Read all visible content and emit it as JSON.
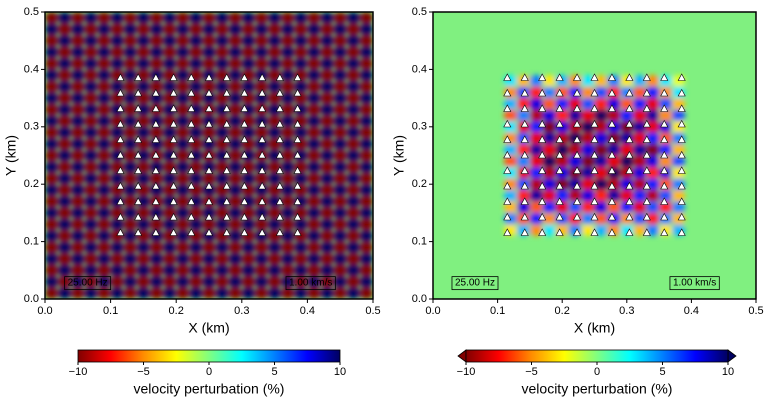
{
  "chart_data": [
    {
      "type": "heatmap",
      "xlabel": "X (km)",
      "ylabel": "Y (km)",
      "xlim": [
        0,
        0.5
      ],
      "ylim": [
        0,
        0.5
      ],
      "xticks": [
        {
          "value": 0,
          "label": "0.0"
        },
        {
          "value": 0.1,
          "label": "0.1"
        },
        {
          "value": 0.2,
          "label": "0.2"
        },
        {
          "value": 0.3,
          "label": "0.3"
        },
        {
          "value": 0.4,
          "label": "0.4"
        },
        {
          "value": 0.5,
          "label": "0.5"
        }
      ],
      "yticks": [
        {
          "value": 0,
          "label": "0.0"
        },
        {
          "value": 0.1,
          "label": "0.1"
        },
        {
          "value": 0.2,
          "label": "0.2"
        },
        {
          "value": 0.3,
          "label": "0.3"
        },
        {
          "value": 0.4,
          "label": "0.4"
        },
        {
          "value": 0.5,
          "label": "0.5"
        }
      ],
      "x": [
        0.01,
        0.03,
        0.05,
        0.07,
        0.09,
        0.11,
        0.13,
        0.15,
        0.17,
        0.19,
        0.21,
        0.23,
        0.25,
        0.27,
        0.29,
        0.31,
        0.33,
        0.35,
        0.37,
        0.39,
        0.41,
        0.43,
        0.45,
        0.47,
        0.49
      ],
      "y": [
        0.01,
        0.03,
        0.05,
        0.07,
        0.09,
        0.11,
        0.13,
        0.15,
        0.17,
        0.19,
        0.21,
        0.23,
        0.25,
        0.27,
        0.29,
        0.31,
        0.33,
        0.35,
        0.37,
        0.39,
        0.41,
        0.43,
        0.45,
        0.47,
        0.49
      ],
      "z": [
        [
          -10,
          10,
          -10,
          10,
          -10,
          10,
          -10,
          10,
          -10,
          10,
          -10,
          10,
          -10,
          10,
          -10,
          10,
          -10,
          10,
          -10,
          10,
          -10,
          10,
          -10,
          10,
          -10
        ],
        [
          10,
          -10,
          10,
          -10,
          10,
          -10,
          10,
          -10,
          10,
          -10,
          10,
          -10,
          10,
          -10,
          10,
          -10,
          10,
          -10,
          10,
          -10,
          10,
          -10,
          10,
          -10,
          10
        ],
        [
          -10,
          10,
          -10,
          10,
          -10,
          10,
          -10,
          10,
          -10,
          10,
          -10,
          10,
          -10,
          10,
          -10,
          10,
          -10,
          10,
          -10,
          10,
          -10,
          10,
          -10,
          10,
          -10
        ],
        [
          10,
          -10,
          10,
          -10,
          10,
          -10,
          10,
          -10,
          10,
          -10,
          10,
          -10,
          10,
          -10,
          10,
          -10,
          10,
          -10,
          10,
          -10,
          10,
          -10,
          10,
          -10,
          10
        ],
        [
          -10,
          10,
          -10,
          10,
          -10,
          10,
          -10,
          10,
          -10,
          10,
          -10,
          10,
          -10,
          10,
          -10,
          10,
          -10,
          10,
          -10,
          10,
          -10,
          10,
          -10,
          10,
          -10
        ],
        [
          10,
          -10,
          10,
          -10,
          10,
          -10,
          10,
          -10,
          10,
          -10,
          10,
          -10,
          10,
          -10,
          10,
          -10,
          10,
          -10,
          10,
          -10,
          10,
          -10,
          10,
          -10,
          10
        ],
        [
          -10,
          10,
          -10,
          10,
          -10,
          10,
          -10,
          10,
          -10,
          10,
          -10,
          10,
          -10,
          10,
          -10,
          10,
          -10,
          10,
          -10,
          10,
          -10,
          10,
          -10,
          10,
          -10
        ],
        [
          10,
          -10,
          10,
          -10,
          10,
          -10,
          10,
          -10,
          10,
          -10,
          10,
          -10,
          10,
          -10,
          10,
          -10,
          10,
          -10,
          10,
          -10,
          10,
          -10,
          10,
          -10,
          10
        ],
        [
          -10,
          10,
          -10,
          10,
          -10,
          10,
          -10,
          10,
          -10,
          10,
          -10,
          10,
          -10,
          10,
          -10,
          10,
          -10,
          10,
          -10,
          10,
          -10,
          10,
          -10,
          10,
          -10
        ],
        [
          10,
          -10,
          10,
          -10,
          10,
          -10,
          10,
          -10,
          10,
          -10,
          10,
          -10,
          10,
          -10,
          10,
          -10,
          10,
          -10,
          10,
          -10,
          10,
          -10,
          10,
          -10,
          10
        ],
        [
          -10,
          10,
          -10,
          10,
          -10,
          10,
          -10,
          10,
          -10,
          10,
          -10,
          10,
          -10,
          10,
          -10,
          10,
          -10,
          10,
          -10,
          10,
          -10,
          10,
          -10,
          10,
          -10
        ],
        [
          10,
          -10,
          10,
          -10,
          10,
          -10,
          10,
          -10,
          10,
          -10,
          10,
          -10,
          10,
          -10,
          10,
          -10,
          10,
          -10,
          10,
          -10,
          10,
          -10,
          10,
          -10,
          10
        ],
        [
          -10,
          10,
          -10,
          10,
          -10,
          10,
          -10,
          10,
          -10,
          10,
          -10,
          10,
          -10,
          10,
          -10,
          10,
          -10,
          10,
          -10,
          10,
          -10,
          10,
          -10,
          10,
          -10
        ],
        [
          10,
          -10,
          10,
          -10,
          10,
          -10,
          10,
          -10,
          10,
          -10,
          10,
          -10,
          10,
          -10,
          10,
          -10,
          10,
          -10,
          10,
          -10,
          10,
          -10,
          10,
          -10,
          10
        ],
        [
          -10,
          10,
          -10,
          10,
          -10,
          10,
          -10,
          10,
          -10,
          10,
          -10,
          10,
          -10,
          10,
          -10,
          10,
          -10,
          10,
          -10,
          10,
          -10,
          10,
          -10,
          10,
          -10
        ],
        [
          10,
          -10,
          10,
          -10,
          10,
          -10,
          10,
          -10,
          10,
          -10,
          10,
          -10,
          10,
          -10,
          10,
          -10,
          10,
          -10,
          10,
          -10,
          10,
          -10,
          10,
          -10,
          10
        ],
        [
          -10,
          10,
          -10,
          10,
          -10,
          10,
          -10,
          10,
          -10,
          10,
          -10,
          10,
          -10,
          10,
          -10,
          10,
          -10,
          10,
          -10,
          10,
          -10,
          10,
          -10,
          10,
          -10
        ],
        [
          10,
          -10,
          10,
          -10,
          10,
          -10,
          10,
          -10,
          10,
          -10,
          10,
          -10,
          10,
          -10,
          10,
          -10,
          10,
          -10,
          10,
          -10,
          10,
          -10,
          10,
          -10,
          10
        ],
        [
          -10,
          10,
          -10,
          10,
          -10,
          10,
          -10,
          10,
          -10,
          10,
          -10,
          10,
          -10,
          10,
          -10,
          10,
          -10,
          10,
          -10,
          10,
          -10,
          10,
          -10,
          10,
          -10
        ],
        [
          10,
          -10,
          10,
          -10,
          10,
          -10,
          10,
          -10,
          10,
          -10,
          10,
          -10,
          10,
          -10,
          10,
          -10,
          10,
          -10,
          10,
          -10,
          10,
          -10,
          10,
          -10,
          10
        ],
        [
          -10,
          10,
          -10,
          10,
          -10,
          10,
          -10,
          10,
          -10,
          10,
          -10,
          10,
          -10,
          10,
          -10,
          10,
          -10,
          10,
          -10,
          10,
          -10,
          10,
          -10,
          10,
          -10
        ],
        [
          10,
          -10,
          10,
          -10,
          10,
          -10,
          10,
          -10,
          10,
          -10,
          10,
          -10,
          10,
          -10,
          10,
          -10,
          10,
          -10,
          10,
          -10,
          10,
          -10,
          10,
          -10,
          10
        ],
        [
          -10,
          10,
          -10,
          10,
          -10,
          10,
          -10,
          10,
          -10,
          10,
          -10,
          10,
          -10,
          10,
          -10,
          10,
          -10,
          10,
          -10,
          10,
          -10,
          10,
          -10,
          10,
          -10
        ],
        [
          10,
          -10,
          10,
          -10,
          10,
          -10,
          10,
          -10,
          10,
          -10,
          10,
          -10,
          10,
          -10,
          10,
          -10,
          10,
          -10,
          10,
          -10,
          10,
          -10,
          10,
          -10,
          10
        ],
        [
          -10,
          10,
          -10,
          10,
          -10,
          10,
          -10,
          10,
          -10,
          10,
          -10,
          10,
          -10,
          10,
          -10,
          10,
          -10,
          10,
          -10,
          10,
          -10,
          10,
          -10,
          10,
          -10
        ]
      ],
      "stations": {
        "color": "#ffffff",
        "x": [
          0.115,
          0.142,
          0.169,
          0.196,
          0.223,
          0.25,
          0.277,
          0.304,
          0.331,
          0.358,
          0.385
        ],
        "y": [
          0.115,
          0.142,
          0.169,
          0.196,
          0.223,
          0.25,
          0.277,
          0.304,
          0.331,
          0.358,
          0.385
        ]
      },
      "annotations": [
        "25.00 Hz",
        "1.00 km/s"
      ],
      "colorbar": {
        "label": "velocity perturbation (%)",
        "range": [
          -10,
          10
        ],
        "ticks": [
          {
            "value": -10,
            "label": "−10"
          },
          {
            "value": -5,
            "label": "−5"
          },
          0,
          5,
          10
        ],
        "extend": false,
        "colors": [
          "#800000",
          "#ff0000",
          "#ff8c00",
          "#ffff00",
          "#80ff80",
          "#00ffff",
          "#0080ff",
          "#0000ff",
          "#000060"
        ]
      }
    },
    {
      "type": "heatmap",
      "xlabel": "X (km)",
      "ylabel": "Y (km)",
      "xlim": [
        0,
        0.5
      ],
      "ylim": [
        0,
        0.5
      ],
      "background": "#80f080",
      "xticks": [
        {
          "value": 0,
          "label": "0.0"
        },
        {
          "value": 0.1,
          "label": "0.1"
        },
        {
          "value": 0.2,
          "label": "0.2"
        },
        {
          "value": 0.3,
          "label": "0.3"
        },
        {
          "value": 0.4,
          "label": "0.4"
        },
        {
          "value": 0.5,
          "label": "0.5"
        }
      ],
      "yticks": [
        {
          "value": 0,
          "label": "0.0"
        },
        {
          "value": 0.1,
          "label": "0.1"
        },
        {
          "value": 0.2,
          "label": "0.2"
        },
        {
          "value": 0.3,
          "label": "0.3"
        },
        {
          "value": 0.4,
          "label": "0.4"
        },
        {
          "value": 0.5,
          "label": "0.5"
        }
      ],
      "x": [
        0.12,
        0.14,
        0.16,
        0.18,
        0.2,
        0.22,
        0.24,
        0.26,
        0.28,
        0.3,
        0.32,
        0.34,
        0.36,
        0.38
      ],
      "y": [
        0.12,
        0.14,
        0.16,
        0.18,
        0.2,
        0.22,
        0.24,
        0.26,
        0.28,
        0.3,
        0.32,
        0.34,
        0.36,
        0.38
      ],
      "z": [
        [
          -3,
          4,
          -5,
          3,
          -4,
          5,
          -3,
          4,
          -5,
          3,
          -4,
          5,
          -3,
          4
        ],
        [
          5,
          -6,
          7,
          -5,
          6,
          -7,
          5,
          -6,
          7,
          -5,
          6,
          -7,
          5,
          -4
        ],
        [
          -4,
          8,
          -6,
          7,
          -8,
          6,
          -7,
          8,
          -6,
          7,
          -8,
          6,
          -7,
          5
        ],
        [
          4,
          -7,
          9,
          -8,
          7,
          -9,
          8,
          -7,
          9,
          -8,
          7,
          -9,
          6,
          -4
        ],
        [
          -5,
          6,
          -9,
          8,
          -10,
          9,
          -8,
          10,
          -9,
          8,
          -9,
          7,
          -6,
          5
        ],
        [
          3,
          -8,
          7,
          -9,
          8,
          -10,
          9,
          -8,
          10,
          -9,
          8,
          -7,
          8,
          -3
        ],
        [
          -6,
          5,
          -8,
          10,
          -9,
          8,
          -10,
          9,
          -8,
          10,
          -9,
          8,
          -5,
          6
        ],
        [
          4,
          -7,
          9,
          -8,
          10,
          -9,
          8,
          -10,
          9,
          -8,
          9,
          -10,
          7,
          -4
        ],
        [
          -5,
          6,
          -8,
          9,
          -9,
          10,
          -9,
          8,
          -10,
          9,
          -8,
          7,
          -6,
          5
        ],
        [
          3,
          -8,
          7,
          -10,
          8,
          -9,
          10,
          -9,
          8,
          -10,
          9,
          -8,
          8,
          -3
        ],
        [
          -6,
          5,
          -9,
          8,
          -7,
          9,
          -8,
          10,
          -9,
          7,
          -8,
          9,
          -5,
          6
        ],
        [
          4,
          -7,
          8,
          -6,
          7,
          -8,
          6,
          -7,
          8,
          -6,
          7,
          -8,
          6,
          -4
        ],
        [
          -5,
          6,
          -7,
          5,
          -6,
          7,
          -5,
          6,
          -7,
          5,
          -6,
          7,
          -5,
          3
        ],
        [
          3,
          -4,
          5,
          -3,
          4,
          -5,
          3,
          -4,
          5,
          -3,
          4,
          -5,
          3,
          -2
        ]
      ],
      "stations": {
        "color": "#ffffff",
        "x": [
          0.115,
          0.142,
          0.169,
          0.196,
          0.223,
          0.25,
          0.277,
          0.304,
          0.331,
          0.358,
          0.385
        ],
        "y": [
          0.115,
          0.142,
          0.169,
          0.196,
          0.223,
          0.25,
          0.277,
          0.304,
          0.331,
          0.358,
          0.385
        ]
      },
      "annotations": [
        "25.00 Hz",
        "1.00 km/s"
      ],
      "colorbar": {
        "label": "velocity perturbation (%)",
        "range": [
          -10,
          10
        ],
        "ticks": [
          {
            "value": -10,
            "label": "−10"
          },
          {
            "value": -5,
            "label": "−5"
          },
          0,
          5,
          10
        ],
        "extend": true,
        "colors": [
          "#800000",
          "#ff0000",
          "#ff8c00",
          "#ffff00",
          "#80ff80",
          "#00ffff",
          "#0080ff",
          "#0000ff",
          "#000060"
        ]
      }
    }
  ]
}
